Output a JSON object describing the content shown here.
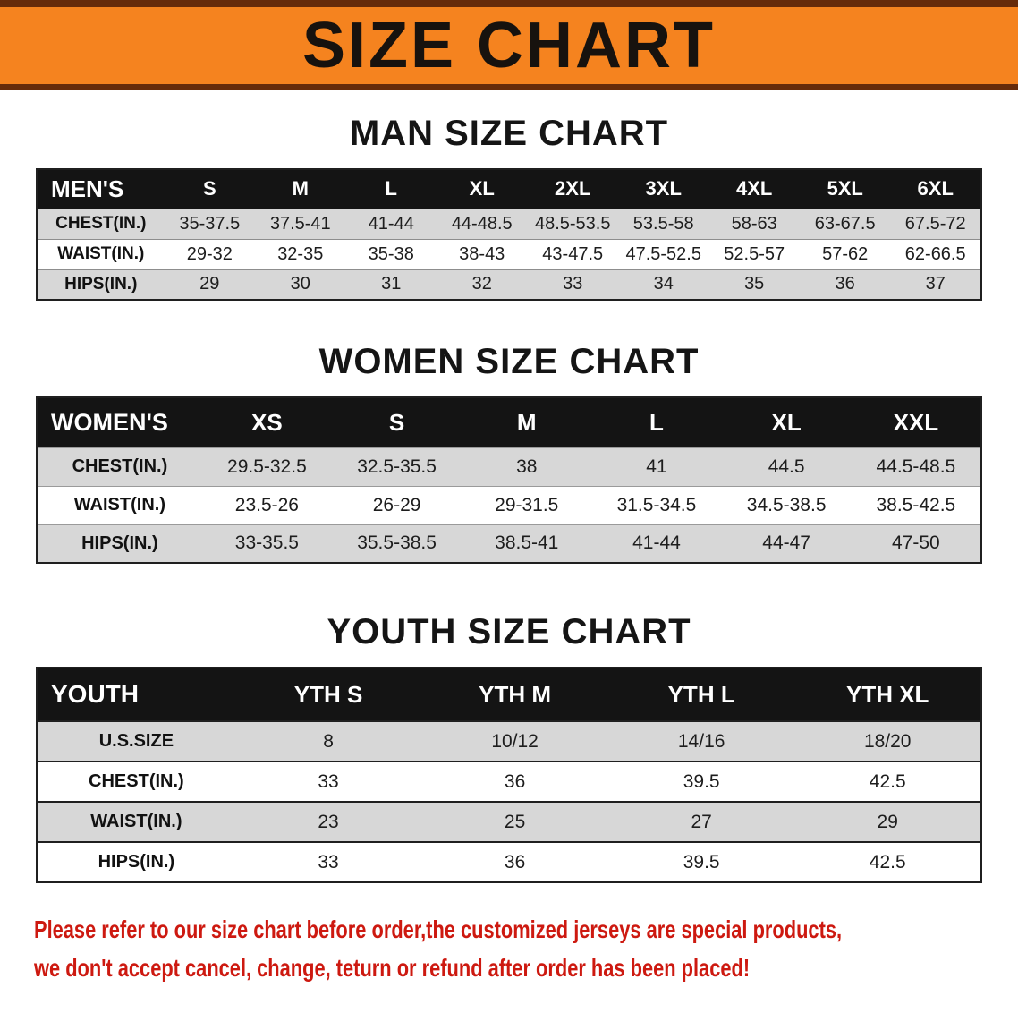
{
  "banner": {
    "title": "SIZE CHART"
  },
  "colors": {
    "banner_bg": "#f5831f",
    "banner_edge": "#662b0a",
    "table_header_bg": "#141414",
    "row_stripe": "#d7d7d7",
    "note_red": "#cd1910"
  },
  "men": {
    "heading": "MAN SIZE CHART",
    "table": {
      "header": [
        "MEN'S",
        "S",
        "M",
        "L",
        "XL",
        "2XL",
        "3XL",
        "4XL",
        "5XL",
        "6XL"
      ],
      "rows": [
        {
          "label": "CHEST(IN.)",
          "values": [
            "35-37.5",
            "37.5-41",
            "41-44",
            "44-48.5",
            "48.5-53.5",
            "53.5-58",
            "58-63",
            "63-67.5",
            "67.5-72"
          ]
        },
        {
          "label": "WAIST(IN.)",
          "values": [
            "29-32",
            "32-35",
            "35-38",
            "38-43",
            "43-47.5",
            "47.5-52.5",
            "52.5-57",
            "57-62",
            "62-66.5"
          ]
        },
        {
          "label": "HIPS(IN.)",
          "values": [
            "29",
            "30",
            "31",
            "32",
            "33",
            "34",
            "35",
            "36",
            "37"
          ]
        }
      ]
    }
  },
  "women": {
    "heading": "WOMEN SIZE CHART",
    "table": {
      "header": [
        "WOMEN'S",
        "XS",
        "S",
        "M",
        "L",
        "XL",
        "XXL"
      ],
      "rows": [
        {
          "label": "CHEST(IN.)",
          "values": [
            "29.5-32.5",
            "32.5-35.5",
            "38",
            "41",
            "44.5",
            "44.5-48.5"
          ]
        },
        {
          "label": "WAIST(IN.)",
          "values": [
            "23.5-26",
            "26-29",
            "29-31.5",
            "31.5-34.5",
            "34.5-38.5",
            "38.5-42.5"
          ]
        },
        {
          "label": "HIPS(IN.)",
          "values": [
            "33-35.5",
            "35.5-38.5",
            "38.5-41",
            "41-44",
            "44-47",
            "47-50"
          ]
        }
      ]
    }
  },
  "youth": {
    "heading": "YOUTH SIZE CHART",
    "table": {
      "header": [
        "YOUTH",
        "YTH S",
        "YTH M",
        "YTH L",
        "YTH XL"
      ],
      "rows": [
        {
          "label": "U.S.SIZE",
          "values": [
            "8",
            "10/12",
            "14/16",
            "18/20"
          ]
        },
        {
          "label": "CHEST(IN.)",
          "values": [
            "33",
            "36",
            "39.5",
            "42.5"
          ]
        },
        {
          "label": "WAIST(IN.)",
          "values": [
            "23",
            "25",
            "27",
            "29"
          ]
        },
        {
          "label": "HIPS(IN.)",
          "values": [
            "33",
            "36",
            "39.5",
            "42.5"
          ]
        }
      ]
    }
  },
  "note": {
    "line1": "Please refer to our size chart before order,the customized jerseys are special products,",
    "line2": "we don't accept cancel, change, teturn or refund after order has been placed!"
  }
}
